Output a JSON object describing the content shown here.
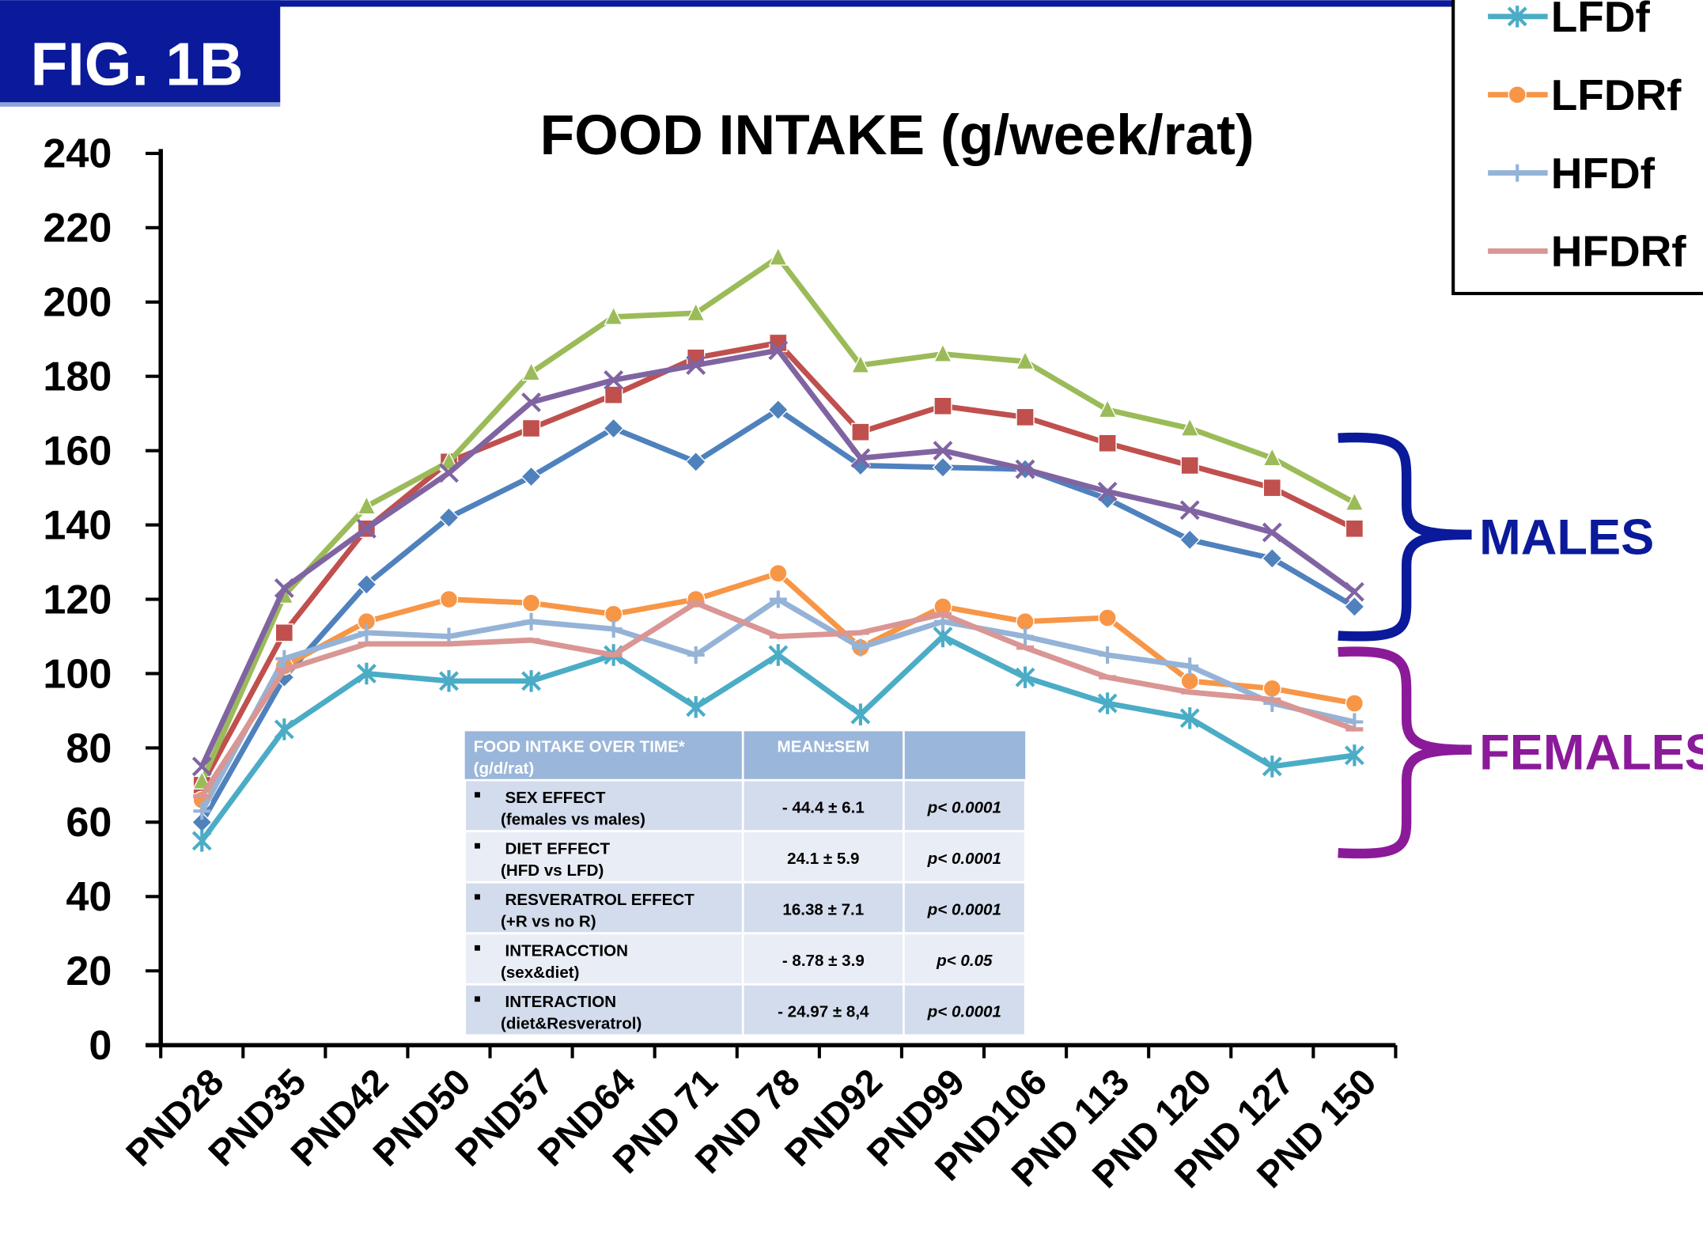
{
  "fig_label": "FIG. 1B",
  "chart_data": {
    "type": "line",
    "title": "FOOD INTAKE (g/week/rat)",
    "categories": [
      "PND28",
      "PND35",
      "PND42",
      "PND50",
      "PND57",
      "PND64",
      "PND 71",
      "PND 78",
      "PND92",
      "PND99",
      "PND106",
      "PND 113",
      "PND 120",
      "PND 127",
      "PND 150"
    ],
    "ylim": [
      0,
      240
    ],
    "yticks": [
      0,
      20,
      40,
      60,
      80,
      100,
      120,
      140,
      160,
      180,
      200,
      220,
      240
    ],
    "series": [
      {
        "color": "#4f81bd",
        "marker": "diamond",
        "values": [
          60,
          99,
          124,
          142,
          153,
          166,
          157,
          171,
          156,
          155.5,
          155,
          147,
          136,
          131,
          118
        ]
      },
      {
        "color": "#c0504d",
        "marker": "square",
        "values": [
          70,
          111,
          139,
          157,
          166,
          175,
          185,
          189,
          165,
          172,
          169,
          162,
          156,
          150,
          139
        ]
      },
      {
        "color": "#9bbb59",
        "marker": "triangle",
        "values": [
          71,
          121,
          145,
          157,
          181,
          196,
          197,
          212,
          183,
          186,
          184,
          171,
          166,
          158,
          146
        ]
      },
      {
        "color": "#8064a2",
        "marker": "x",
        "values": [
          75,
          123,
          139,
          154,
          173,
          179,
          183,
          187,
          158,
          160,
          155,
          149,
          144,
          138,
          122
        ]
      },
      {
        "name": "LFDf",
        "color": "#4bacc6",
        "marker": "star",
        "values": [
          55,
          85,
          100,
          98,
          98,
          105,
          91,
          105,
          89,
          110,
          99,
          92,
          88,
          75,
          78
        ]
      },
      {
        "name": "LFDRf",
        "color": "#f79646",
        "marker": "circle",
        "values": [
          66,
          102,
          114,
          120,
          119,
          116,
          120,
          127,
          107,
          118,
          114,
          115,
          98,
          96,
          92
        ]
      },
      {
        "name": "HFDf",
        "color": "#95b3d7",
        "marker": "plus",
        "values": [
          63,
          104,
          111,
          110,
          114,
          112,
          105,
          120,
          107,
          114,
          110,
          105,
          102,
          92,
          87
        ]
      },
      {
        "name": "HFDRf",
        "color": "#d99694",
        "marker": "dash",
        "values": [
          67,
          101,
          108,
          108,
          109,
          105,
          119,
          110,
          111,
          116,
          107,
          99,
          95,
          93,
          85
        ]
      }
    ],
    "annotations": [
      "MALES",
      "FEMALES"
    ]
  },
  "table": {
    "header": [
      "FOOD INTAKE OVER TIME* (g/d/rat)",
      "MEAN±SEM"
    ],
    "rows": [
      {
        "effect": "SEX EFFECT",
        "detail": "(females vs males)",
        "mean": "- 44.4 ± 6.1",
        "p": "p< 0.0001"
      },
      {
        "effect": "DIET EFFECT",
        "detail": "(HFD vs LFD)",
        "mean": "24.1 ± 5.9",
        "p": "p< 0.0001"
      },
      {
        "effect": "RESVERATROL EFFECT",
        "detail": "(+R vs no R)",
        "mean": "16.38 ± 7.1",
        "p": "p< 0.0001"
      },
      {
        "effect": "INTERACCTION",
        "detail": "(sex&diet)",
        "mean": "- 8.78 ± 3.9",
        "p": "p< 0.05"
      },
      {
        "effect": "INTERACTION",
        "detail": "(diet&Resveratrol)",
        "mean": "- 24.97 ± 8,4",
        "p": "p< 0.0001"
      }
    ]
  }
}
